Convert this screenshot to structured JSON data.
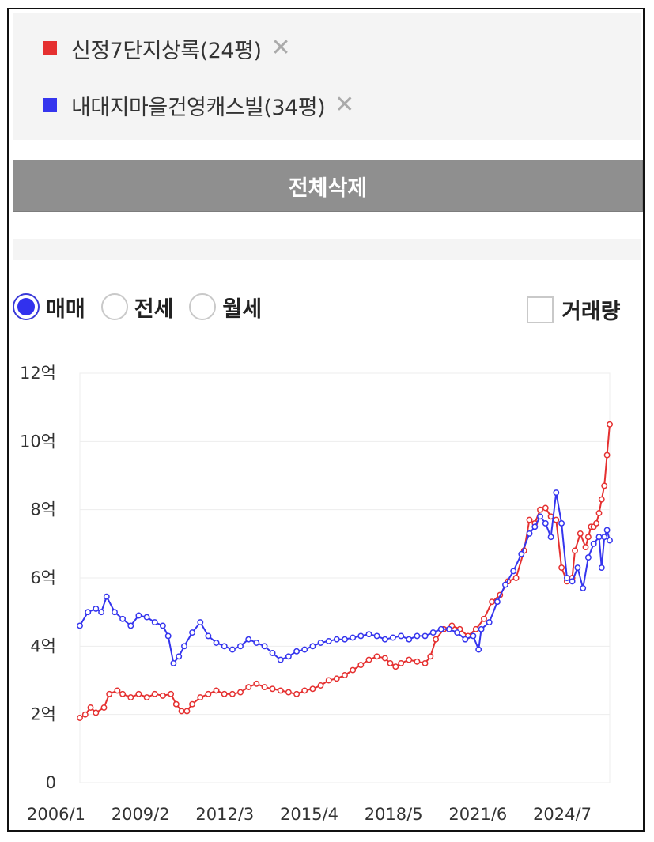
{
  "legend": {
    "items": [
      {
        "label": "신정7단지상록(24평)",
        "color": "#e53030",
        "remove": "✕"
      },
      {
        "label": "내대지마을건영캐스빌(34평)",
        "color": "#3535ee",
        "remove": "✕"
      }
    ]
  },
  "buttons": {
    "delete_all": "전체삭제"
  },
  "radios": [
    {
      "label": "매매",
      "selected": true
    },
    {
      "label": "전세",
      "selected": false
    },
    {
      "label": "월세",
      "selected": false
    }
  ],
  "checkbox": {
    "label": "거래량",
    "checked": false
  },
  "chart_data": {
    "type": "line",
    "x_ticks": [
      "2006/1",
      "2009/2",
      "2012/3",
      "2015/4",
      "2018/5",
      "2021/6",
      "2024/7"
    ],
    "y_ticks": [
      "0",
      "2억",
      "4억",
      "6억",
      "8억",
      "10억",
      "12억"
    ],
    "ylim": [
      0,
      12
    ],
    "xlim": [
      2006.0,
      2025.8
    ],
    "y_unit": "억",
    "series": [
      {
        "name": "신정7단지상록(24평)",
        "color": "#e53030",
        "points": [
          [
            2006.0,
            1.9
          ],
          [
            2006.2,
            2.0
          ],
          [
            2006.4,
            2.2
          ],
          [
            2006.6,
            2.05
          ],
          [
            2006.9,
            2.2
          ],
          [
            2007.1,
            2.6
          ],
          [
            2007.4,
            2.7
          ],
          [
            2007.6,
            2.6
          ],
          [
            2007.9,
            2.5
          ],
          [
            2008.2,
            2.6
          ],
          [
            2008.5,
            2.5
          ],
          [
            2008.8,
            2.6
          ],
          [
            2009.1,
            2.55
          ],
          [
            2009.4,
            2.6
          ],
          [
            2009.6,
            2.3
          ],
          [
            2009.8,
            2.1
          ],
          [
            2010.0,
            2.1
          ],
          [
            2010.2,
            2.3
          ],
          [
            2010.5,
            2.5
          ],
          [
            2010.8,
            2.6
          ],
          [
            2011.1,
            2.7
          ],
          [
            2011.4,
            2.6
          ],
          [
            2011.7,
            2.6
          ],
          [
            2012.0,
            2.65
          ],
          [
            2012.3,
            2.8
          ],
          [
            2012.6,
            2.9
          ],
          [
            2012.9,
            2.8
          ],
          [
            2013.2,
            2.75
          ],
          [
            2013.5,
            2.7
          ],
          [
            2013.8,
            2.65
          ],
          [
            2014.1,
            2.6
          ],
          [
            2014.4,
            2.7
          ],
          [
            2014.7,
            2.75
          ],
          [
            2015.0,
            2.85
          ],
          [
            2015.3,
            3.0
          ],
          [
            2015.6,
            3.05
          ],
          [
            2015.9,
            3.15
          ],
          [
            2016.2,
            3.3
          ],
          [
            2016.5,
            3.45
          ],
          [
            2016.8,
            3.6
          ],
          [
            2017.1,
            3.7
          ],
          [
            2017.4,
            3.65
          ],
          [
            2017.6,
            3.5
          ],
          [
            2017.8,
            3.4
          ],
          [
            2018.0,
            3.5
          ],
          [
            2018.3,
            3.6
          ],
          [
            2018.6,
            3.55
          ],
          [
            2018.9,
            3.5
          ],
          [
            2019.1,
            3.7
          ],
          [
            2019.3,
            4.2
          ],
          [
            2019.6,
            4.5
          ],
          [
            2019.9,
            4.6
          ],
          [
            2020.2,
            4.5
          ],
          [
            2020.5,
            4.3
          ],
          [
            2020.8,
            4.5
          ],
          [
            2021.1,
            4.8
          ],
          [
            2021.4,
            5.3
          ],
          [
            2021.7,
            5.5
          ],
          [
            2022.0,
            5.9
          ],
          [
            2022.3,
            6.0
          ],
          [
            2022.6,
            6.8
          ],
          [
            2022.8,
            7.7
          ],
          [
            2023.0,
            7.6
          ],
          [
            2023.2,
            8.0
          ],
          [
            2023.4,
            8.05
          ],
          [
            2023.6,
            7.8
          ],
          [
            2023.8,
            7.7
          ],
          [
            2024.0,
            6.3
          ],
          [
            2024.2,
            5.9
          ],
          [
            2024.4,
            6.0
          ],
          [
            2024.5,
            6.8
          ],
          [
            2024.7,
            7.3
          ],
          [
            2024.9,
            6.9
          ],
          [
            2025.0,
            7.2
          ],
          [
            2025.1,
            7.5
          ],
          [
            2025.2,
            7.5
          ],
          [
            2025.3,
            7.6
          ],
          [
            2025.4,
            7.9
          ],
          [
            2025.5,
            8.3
          ],
          [
            2025.6,
            8.7
          ],
          [
            2025.7,
            9.6
          ],
          [
            2025.8,
            10.5
          ]
        ]
      },
      {
        "name": "내대지마을건영캐스빌(34평)",
        "color": "#3535ee",
        "points": [
          [
            2006.0,
            4.6
          ],
          [
            2006.3,
            5.0
          ],
          [
            2006.6,
            5.1
          ],
          [
            2006.8,
            5.0
          ],
          [
            2007.0,
            5.45
          ],
          [
            2007.3,
            5.0
          ],
          [
            2007.6,
            4.8
          ],
          [
            2007.9,
            4.6
          ],
          [
            2008.2,
            4.9
          ],
          [
            2008.5,
            4.85
          ],
          [
            2008.8,
            4.7
          ],
          [
            2009.1,
            4.6
          ],
          [
            2009.3,
            4.3
          ],
          [
            2009.5,
            3.5
          ],
          [
            2009.7,
            3.7
          ],
          [
            2009.9,
            4.0
          ],
          [
            2010.2,
            4.4
          ],
          [
            2010.5,
            4.7
          ],
          [
            2010.8,
            4.3
          ],
          [
            2011.1,
            4.1
          ],
          [
            2011.4,
            4.0
          ],
          [
            2011.7,
            3.9
          ],
          [
            2012.0,
            4.0
          ],
          [
            2012.3,
            4.2
          ],
          [
            2012.6,
            4.1
          ],
          [
            2012.9,
            4.0
          ],
          [
            2013.2,
            3.8
          ],
          [
            2013.5,
            3.6
          ],
          [
            2013.8,
            3.7
          ],
          [
            2014.1,
            3.85
          ],
          [
            2014.4,
            3.9
          ],
          [
            2014.7,
            4.0
          ],
          [
            2015.0,
            4.1
          ],
          [
            2015.3,
            4.15
          ],
          [
            2015.6,
            4.2
          ],
          [
            2015.9,
            4.2
          ],
          [
            2016.2,
            4.25
          ],
          [
            2016.5,
            4.3
          ],
          [
            2016.8,
            4.35
          ],
          [
            2017.1,
            4.3
          ],
          [
            2017.4,
            4.2
          ],
          [
            2017.7,
            4.25
          ],
          [
            2018.0,
            4.3
          ],
          [
            2018.3,
            4.2
          ],
          [
            2018.6,
            4.3
          ],
          [
            2018.9,
            4.3
          ],
          [
            2019.2,
            4.4
          ],
          [
            2019.5,
            4.5
          ],
          [
            2019.8,
            4.5
          ],
          [
            2020.1,
            4.4
          ],
          [
            2020.4,
            4.2
          ],
          [
            2020.7,
            4.3
          ],
          [
            2020.9,
            3.9
          ],
          [
            2021.0,
            4.5
          ],
          [
            2021.3,
            4.7
          ],
          [
            2021.6,
            5.3
          ],
          [
            2021.9,
            5.8
          ],
          [
            2022.2,
            6.2
          ],
          [
            2022.5,
            6.7
          ],
          [
            2022.8,
            7.3
          ],
          [
            2023.0,
            7.5
          ],
          [
            2023.2,
            7.8
          ],
          [
            2023.4,
            7.6
          ],
          [
            2023.6,
            7.2
          ],
          [
            2023.8,
            8.5
          ],
          [
            2024.0,
            7.6
          ],
          [
            2024.2,
            6.0
          ],
          [
            2024.4,
            5.9
          ],
          [
            2024.6,
            6.3
          ],
          [
            2024.8,
            5.7
          ],
          [
            2025.0,
            6.6
          ],
          [
            2025.2,
            7.0
          ],
          [
            2025.4,
            7.2
          ],
          [
            2025.5,
            6.3
          ],
          [
            2025.6,
            7.2
          ],
          [
            2025.7,
            7.4
          ],
          [
            2025.8,
            7.1
          ]
        ]
      }
    ]
  }
}
